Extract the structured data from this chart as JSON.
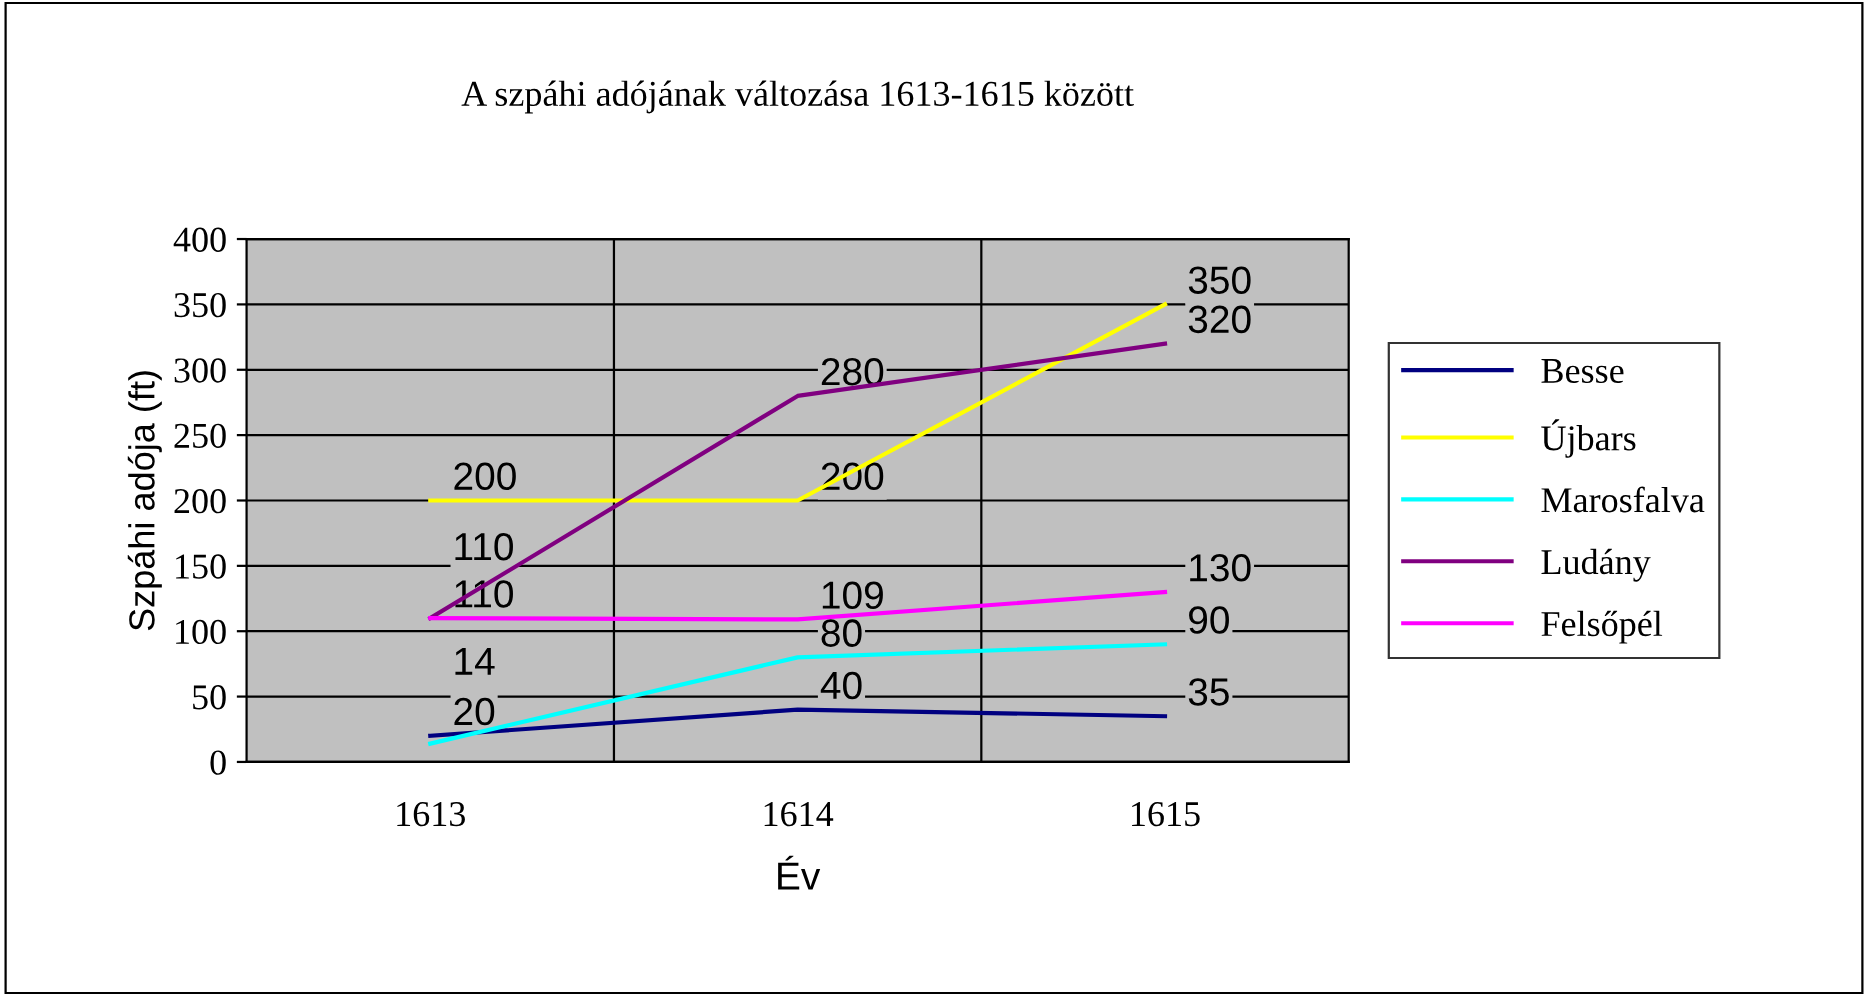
{
  "chart_data": {
    "type": "line",
    "title": "A szpáhi adójának változása 1613-1615 között",
    "xlabel": "Év",
    "ylabel": "Szpáhi adója (ft)",
    "categories": [
      "1613",
      "1614",
      "1615"
    ],
    "series": [
      {
        "name": "Besse",
        "color": "#000080",
        "values": [
          20,
          40,
          35
        ]
      },
      {
        "name": "Újbars",
        "color": "#ffff00",
        "values": [
          200,
          200,
          350
        ]
      },
      {
        "name": "Marosfalva",
        "color": "#00ffff",
        "values": [
          14,
          80,
          90
        ]
      },
      {
        "name": "Ludány",
        "color": "#800080",
        "values": [
          110,
          280,
          320
        ]
      },
      {
        "name": "Felsőpél",
        "color": "#ff00ff",
        "values": [
          110,
          109,
          130
        ]
      }
    ],
    "ylim": [
      0,
      400
    ],
    "yticks": [
      0,
      50,
      100,
      150,
      200,
      250,
      300,
      350,
      400
    ],
    "grid": true,
    "legend": "right",
    "data_labels": true
  }
}
